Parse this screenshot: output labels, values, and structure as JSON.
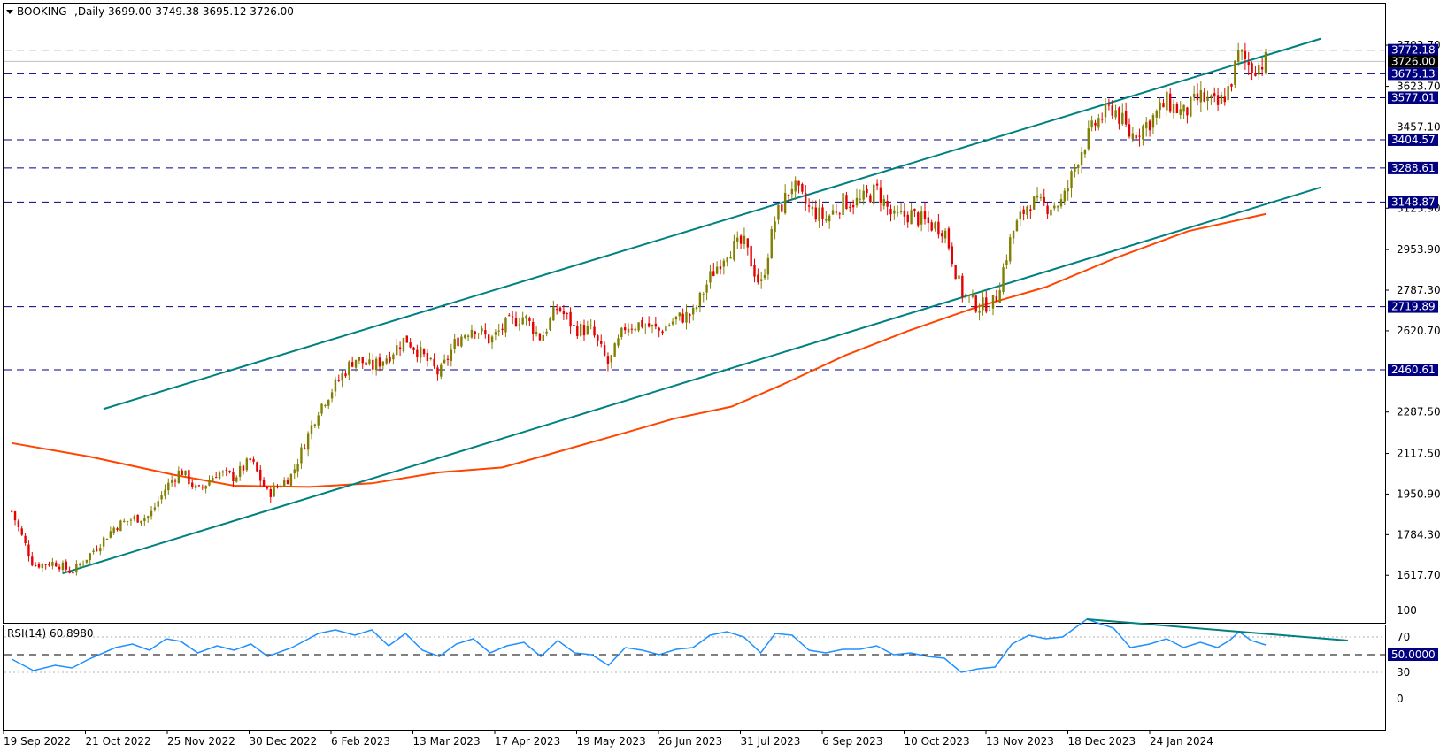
{
  "chart_data": {
    "type": "candlestick",
    "symbol": "BOOKING",
    "timeframe": "Daily",
    "ohlc_header": {
      "open": "3699.00",
      "high": "3749.38",
      "low": "3695.12",
      "close": "3726.00"
    },
    "current_price": "3726.00",
    "price_ylim": [
      1575,
      3840
    ],
    "price_ticks": [
      "3792.70",
      "3623.70",
      "3457.10",
      "3123.90",
      "2953.90",
      "2787.30",
      "2620.70",
      "2287.50",
      "2117.50",
      "1950.90",
      "1784.30",
      "1617.70"
    ],
    "horizontal_levels": [
      3772.18,
      3675.13,
      3577.01,
      3404.57,
      3288.61,
      3148.87,
      2719.89,
      2460.61
    ],
    "horizontal_level_labels": [
      "3772.18",
      "3675.13",
      "3577.01",
      "3404.57",
      "3288.61",
      "3148.87",
      "2719.89",
      "2460.61"
    ],
    "x_labels": [
      "19 Sep 2022",
      "21 Oct 2022",
      "25 Nov 2022",
      "30 Dec 2022",
      "6 Feb 2023",
      "13 Mar 2023",
      "17 Apr 2023",
      "19 May 2023",
      "26 Jun 2023",
      "31 Jul 2023",
      "6 Sep 2023",
      "10 Oct 2023",
      "13 Nov 2023",
      "18 Dec 2023",
      "24 Jan 2024"
    ],
    "close_path": [
      {
        "date": "2022-09-19",
        "close": 1880
      },
      {
        "date": "2022-09-28",
        "close": 1660
      },
      {
        "date": "2022-10-07",
        "close": 1670
      },
      {
        "date": "2022-10-14",
        "close": 1630
      },
      {
        "date": "2022-10-21",
        "close": 1700
      },
      {
        "date": "2022-11-01",
        "close": 1820
      },
      {
        "date": "2022-11-08",
        "close": 1850
      },
      {
        "date": "2022-11-15",
        "close": 1860
      },
      {
        "date": "2022-11-22",
        "close": 1980
      },
      {
        "date": "2022-11-28",
        "close": 2050
      },
      {
        "date": "2022-12-05",
        "close": 1960
      },
      {
        "date": "2022-12-13",
        "close": 2040
      },
      {
        "date": "2022-12-20",
        "close": 2020
      },
      {
        "date": "2022-12-27",
        "close": 2090
      },
      {
        "date": "2023-01-03",
        "close": 1950
      },
      {
        "date": "2023-01-13",
        "close": 2030
      },
      {
        "date": "2023-01-24",
        "close": 2300
      },
      {
        "date": "2023-01-31",
        "close": 2400
      },
      {
        "date": "2023-02-08",
        "close": 2510
      },
      {
        "date": "2023-02-15",
        "close": 2470
      },
      {
        "date": "2023-02-22",
        "close": 2520
      },
      {
        "date": "2023-03-01",
        "close": 2590
      },
      {
        "date": "2023-03-08",
        "close": 2520
      },
      {
        "date": "2023-03-15",
        "close": 2440
      },
      {
        "date": "2023-03-22",
        "close": 2580
      },
      {
        "date": "2023-03-29",
        "close": 2640
      },
      {
        "date": "2023-04-05",
        "close": 2580
      },
      {
        "date": "2023-04-12",
        "close": 2650
      },
      {
        "date": "2023-04-19",
        "close": 2680
      },
      {
        "date": "2023-04-26",
        "close": 2590
      },
      {
        "date": "2023-05-03",
        "close": 2720
      },
      {
        "date": "2023-05-10",
        "close": 2630
      },
      {
        "date": "2023-05-17",
        "close": 2620
      },
      {
        "date": "2023-05-24",
        "close": 2480
      },
      {
        "date": "2023-05-31",
        "close": 2640
      },
      {
        "date": "2023-06-07",
        "close": 2650
      },
      {
        "date": "2023-06-14",
        "close": 2620
      },
      {
        "date": "2023-06-21",
        "close": 2670
      },
      {
        "date": "2023-06-28",
        "close": 2690
      },
      {
        "date": "2023-07-05",
        "close": 2840
      },
      {
        "date": "2023-07-12",
        "close": 2950
      },
      {
        "date": "2023-07-19",
        "close": 2980
      },
      {
        "date": "2023-07-26",
        "close": 2800
      },
      {
        "date": "2023-08-01",
        "close": 3080
      },
      {
        "date": "2023-08-08",
        "close": 3220
      },
      {
        "date": "2023-08-15",
        "close": 3120
      },
      {
        "date": "2023-08-22",
        "close": 3080
      },
      {
        "date": "2023-08-29",
        "close": 3150
      },
      {
        "date": "2023-09-05",
        "close": 3150
      },
      {
        "date": "2023-09-12",
        "close": 3200
      },
      {
        "date": "2023-09-19",
        "close": 3080
      },
      {
        "date": "2023-09-26",
        "close": 3100
      },
      {
        "date": "2023-10-03",
        "close": 3060
      },
      {
        "date": "2023-10-10",
        "close": 3040
      },
      {
        "date": "2023-10-17",
        "close": 2780
      },
      {
        "date": "2023-10-24",
        "close": 2720
      },
      {
        "date": "2023-10-31",
        "close": 2740
      },
      {
        "date": "2023-11-07",
        "close": 3020
      },
      {
        "date": "2023-11-14",
        "close": 3150
      },
      {
        "date": "2023-11-21",
        "close": 3130
      },
      {
        "date": "2023-11-28",
        "close": 3150
      },
      {
        "date": "2023-12-05",
        "close": 3350
      },
      {
        "date": "2023-12-12",
        "close": 3480
      },
      {
        "date": "2023-12-19",
        "close": 3540
      },
      {
        "date": "2023-12-26",
        "close": 3420
      },
      {
        "date": "2024-01-03",
        "close": 3480
      },
      {
        "date": "2024-01-10",
        "close": 3560
      },
      {
        "date": "2024-01-17",
        "close": 3510
      },
      {
        "date": "2024-01-24",
        "close": 3580
      },
      {
        "date": "2024-01-31",
        "close": 3540
      },
      {
        "date": "2024-02-05",
        "close": 3620
      },
      {
        "date": "2024-02-09",
        "close": 3760
      },
      {
        "date": "2024-02-14",
        "close": 3700
      },
      {
        "date": "2024-02-20",
        "close": 3726
      }
    ],
    "ma_path": [
      {
        "date": "2022-09-19",
        "value": 2160
      },
      {
        "date": "2022-10-21",
        "value": 2105
      },
      {
        "date": "2022-11-25",
        "value": 2030
      },
      {
        "date": "2022-12-20",
        "value": 1985
      },
      {
        "date": "2023-01-20",
        "value": 1980
      },
      {
        "date": "2023-02-15",
        "value": 1995
      },
      {
        "date": "2023-03-15",
        "value": 2040
      },
      {
        "date": "2023-04-10",
        "value": 2060
      },
      {
        "date": "2023-04-28",
        "value": 2110
      },
      {
        "date": "2023-05-30",
        "value": 2200
      },
      {
        "date": "2023-06-20",
        "value": 2260
      },
      {
        "date": "2023-07-14",
        "value": 2310
      },
      {
        "date": "2023-08-04",
        "value": 2400
      },
      {
        "date": "2023-08-30",
        "value": 2520
      },
      {
        "date": "2023-09-25",
        "value": 2620
      },
      {
        "date": "2023-10-24",
        "value": 2720
      },
      {
        "date": "2023-11-21",
        "value": 2800
      },
      {
        "date": "2023-12-20",
        "value": 2920
      },
      {
        "date": "2024-01-19",
        "value": 3030
      },
      {
        "date": "2024-02-20",
        "value": 3100
      }
    ],
    "channel_lines": [
      {
        "points": [
          {
            "date": "2022-10-27",
            "value": 2300
          },
          {
            "date": "2024-03-14",
            "value": 3820
          }
        ]
      },
      {
        "points": [
          {
            "date": "2022-10-10",
            "value": 1625
          },
          {
            "date": "2024-03-14",
            "value": 3210
          }
        ]
      }
    ],
    "rsi": {
      "label": "RSI(14) 60.8980",
      "period": 14,
      "value": "60.8980",
      "ylim": [
        0,
        100
      ],
      "ticks": [
        "100",
        "70",
        "30",
        "0"
      ],
      "level_label": "50.0000",
      "dotted_levels": [
        70,
        30
      ],
      "path": [
        {
          "date": "2022-09-19",
          "value": 45
        },
        {
          "date": "2022-09-28",
          "value": 32
        },
        {
          "date": "2022-10-07",
          "value": 38
        },
        {
          "date": "2022-10-14",
          "value": 35
        },
        {
          "date": "2022-10-21",
          "value": 45
        },
        {
          "date": "2022-11-01",
          "value": 58
        },
        {
          "date": "2022-11-08",
          "value": 62
        },
        {
          "date": "2022-11-15",
          "value": 55
        },
        {
          "date": "2022-11-22",
          "value": 68
        },
        {
          "date": "2022-11-28",
          "value": 65
        },
        {
          "date": "2022-12-05",
          "value": 52
        },
        {
          "date": "2022-12-13",
          "value": 60
        },
        {
          "date": "2022-12-20",
          "value": 55
        },
        {
          "date": "2022-12-27",
          "value": 62
        },
        {
          "date": "2023-01-03",
          "value": 48
        },
        {
          "date": "2023-01-13",
          "value": 58
        },
        {
          "date": "2023-01-24",
          "value": 74
        },
        {
          "date": "2023-01-31",
          "value": 78
        },
        {
          "date": "2023-02-08",
          "value": 72
        },
        {
          "date": "2023-02-15",
          "value": 78
        },
        {
          "date": "2023-02-22",
          "value": 60
        },
        {
          "date": "2023-03-01",
          "value": 74
        },
        {
          "date": "2023-03-08",
          "value": 55
        },
        {
          "date": "2023-03-15",
          "value": 48
        },
        {
          "date": "2023-03-22",
          "value": 62
        },
        {
          "date": "2023-03-29",
          "value": 68
        },
        {
          "date": "2023-04-05",
          "value": 52
        },
        {
          "date": "2023-04-12",
          "value": 60
        },
        {
          "date": "2023-04-19",
          "value": 64
        },
        {
          "date": "2023-04-26",
          "value": 48
        },
        {
          "date": "2023-05-03",
          "value": 66
        },
        {
          "date": "2023-05-10",
          "value": 52
        },
        {
          "date": "2023-05-17",
          "value": 50
        },
        {
          "date": "2023-05-24",
          "value": 38
        },
        {
          "date": "2023-05-31",
          "value": 58
        },
        {
          "date": "2023-06-07",
          "value": 55
        },
        {
          "date": "2023-06-14",
          "value": 50
        },
        {
          "date": "2023-06-21",
          "value": 56
        },
        {
          "date": "2023-06-28",
          "value": 58
        },
        {
          "date": "2023-07-05",
          "value": 72
        },
        {
          "date": "2023-07-12",
          "value": 76
        },
        {
          "date": "2023-07-19",
          "value": 70
        },
        {
          "date": "2023-07-26",
          "value": 52
        },
        {
          "date": "2023-08-01",
          "value": 74
        },
        {
          "date": "2023-08-08",
          "value": 72
        },
        {
          "date": "2023-08-15",
          "value": 55
        },
        {
          "date": "2023-08-22",
          "value": 52
        },
        {
          "date": "2023-08-29",
          "value": 56
        },
        {
          "date": "2023-09-05",
          "value": 56
        },
        {
          "date": "2023-09-12",
          "value": 60
        },
        {
          "date": "2023-09-19",
          "value": 50
        },
        {
          "date": "2023-09-26",
          "value": 52
        },
        {
          "date": "2023-10-03",
          "value": 48
        },
        {
          "date": "2023-10-10",
          "value": 46
        },
        {
          "date": "2023-10-17",
          "value": 30
        },
        {
          "date": "2023-10-24",
          "value": 34
        },
        {
          "date": "2023-10-31",
          "value": 36
        },
        {
          "date": "2023-11-07",
          "value": 62
        },
        {
          "date": "2023-11-14",
          "value": 72
        },
        {
          "date": "2023-11-21",
          "value": 68
        },
        {
          "date": "2023-11-28",
          "value": 70
        },
        {
          "date": "2023-12-05",
          "value": 84
        },
        {
          "date": "2023-12-08",
          "value": 90
        },
        {
          "date": "2023-12-19",
          "value": 80
        },
        {
          "date": "2023-12-26",
          "value": 58
        },
        {
          "date": "2024-01-03",
          "value": 62
        },
        {
          "date": "2024-01-10",
          "value": 68
        },
        {
          "date": "2024-01-17",
          "value": 58
        },
        {
          "date": "2024-01-24",
          "value": 64
        },
        {
          "date": "2024-01-31",
          "value": 58
        },
        {
          "date": "2024-02-05",
          "value": 66
        },
        {
          "date": "2024-02-09",
          "value": 76
        },
        {
          "date": "2024-02-14",
          "value": 66
        },
        {
          "date": "2024-02-20",
          "value": 61
        }
      ],
      "trendline": [
        {
          "date": "2023-12-08",
          "value": 90
        },
        {
          "date": "2024-03-25",
          "value": 66
        }
      ]
    },
    "colors": {
      "bull": "#808000",
      "bear": "#e60000",
      "ma": "#ff4500",
      "channel": "#008080",
      "rsi": "#1e90ff",
      "level": "#000080",
      "level_label_bg": "#000080",
      "price_label_bg": "#000000"
    }
  }
}
